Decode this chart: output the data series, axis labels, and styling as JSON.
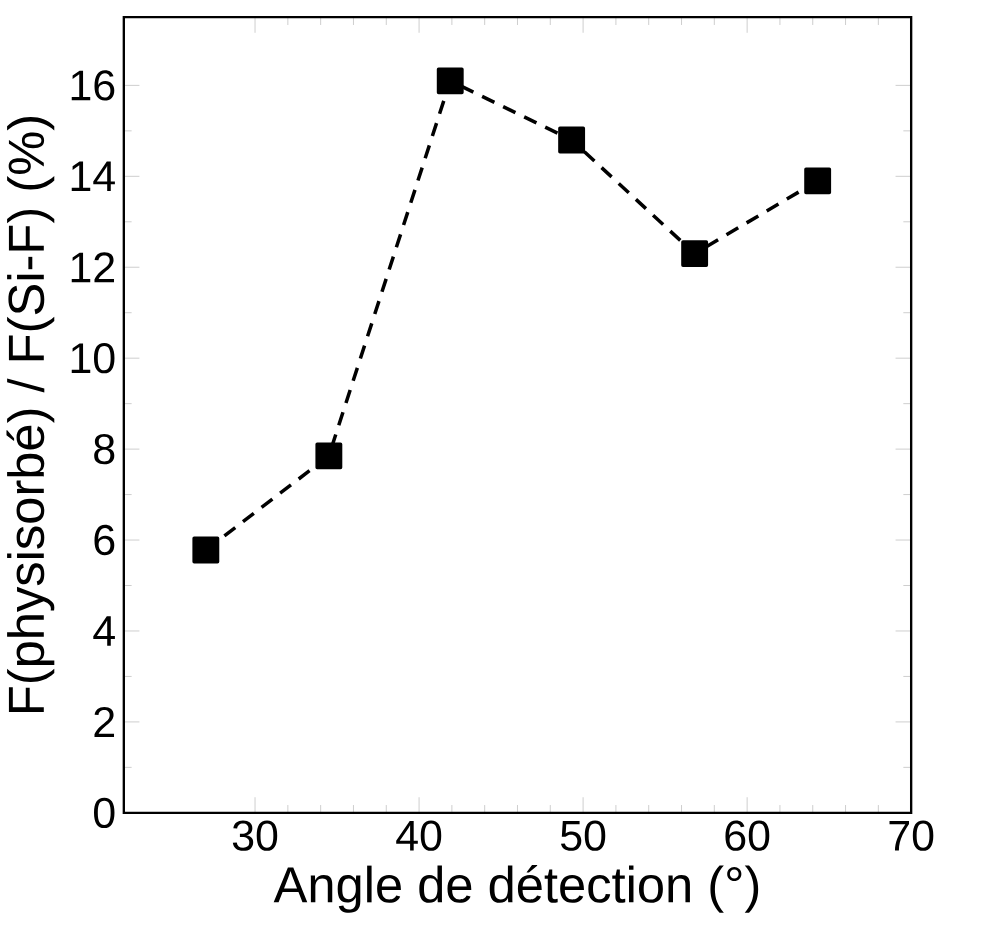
{
  "chart_data": {
    "type": "line",
    "xlabel": "Angle de détection (°)",
    "ylabel": "F(physisorbé) / F(Si-F) (%)",
    "x": [
      27.0,
      34.5,
      41.9,
      49.3,
      56.8,
      64.3
    ],
    "series": [
      {
        "color": "#000000",
        "values": [
          5.78,
          7.85,
          16.1,
          14.8,
          12.3,
          13.9
        ]
      }
    ],
    "xlim": [
      22,
      70
    ],
    "ylim": [
      0,
      17.5
    ],
    "xticks": [
      30,
      40,
      50,
      60,
      70
    ],
    "yticks": [
      0,
      2,
      4,
      6,
      8,
      10,
      12,
      14,
      16
    ],
    "marker": "square",
    "line_style": "dashed",
    "grid": false,
    "legend": false
  }
}
